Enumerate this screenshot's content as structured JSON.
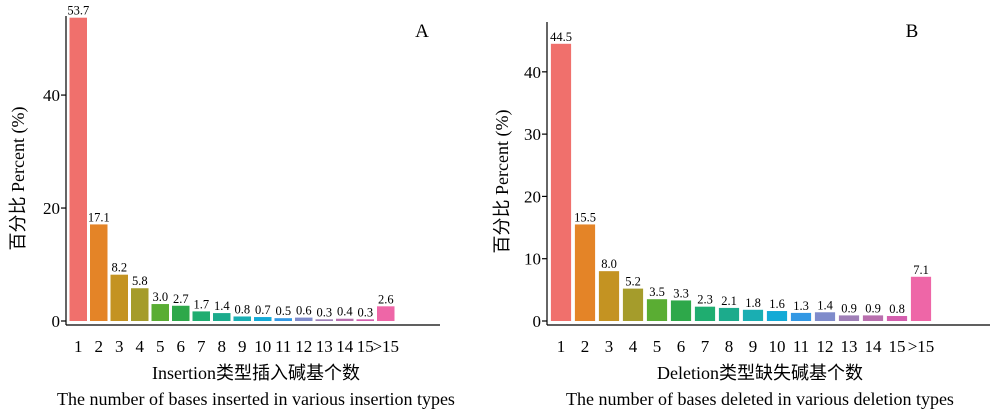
{
  "chart_data": [
    {
      "type": "bar",
      "panel_label": "A",
      "categories": [
        "1",
        "2",
        "3",
        "4",
        "5",
        "6",
        "7",
        "8",
        "9",
        "10",
        "11",
        "12",
        "13",
        "14",
        "15",
        ">15"
      ],
      "values": [
        53.7,
        17.1,
        8.2,
        5.8,
        3.0,
        2.7,
        1.7,
        1.4,
        0.8,
        0.7,
        0.5,
        0.6,
        0.3,
        0.4,
        0.3,
        2.6
      ],
      "value_labels": [
        "53.7",
        "17.1",
        "8.2",
        "5.8",
        "3.0",
        "2.7",
        "1.7",
        "1.4",
        "0.8",
        "0.7",
        "0.5",
        "0.6",
        "0.3",
        "0.4",
        "0.3",
        "2.6"
      ],
      "ylabel": "百分比 Percent (%)",
      "xlabel": "Insertion类型插入碱基个数",
      "xlabel_en": "The number of bases inserted in various insertion types",
      "yticks": [
        0,
        20,
        40
      ],
      "ylim": [
        0,
        54
      ],
      "grid": false,
      "colors": [
        "#f0706c",
        "#e48427",
        "#c49322",
        "#a59c2b",
        "#5aad33",
        "#2ea84a",
        "#1fad70",
        "#1cab8c",
        "#1aaeb2",
        "#13aad6",
        "#3298e4",
        "#7f8bcb",
        "#9f7fb7",
        "#b96fae",
        "#d45fae",
        "#ee66a7"
      ]
    },
    {
      "type": "bar",
      "panel_label": "B",
      "categories": [
        "1",
        "2",
        "3",
        "4",
        "5",
        "6",
        "7",
        "8",
        "9",
        "10",
        "11",
        "12",
        "13",
        "14",
        "15",
        ">15"
      ],
      "values": [
        44.5,
        15.5,
        8.0,
        5.2,
        3.5,
        3.3,
        2.3,
        2.1,
        1.8,
        1.6,
        1.3,
        1.4,
        0.9,
        0.9,
        0.8,
        7.1
      ],
      "value_labels": [
        "44.5",
        "15.5",
        "8.0",
        "5.2",
        "3.5",
        "3.3",
        "2.3",
        "2.1",
        "1.8",
        "1.6",
        "1.3",
        "1.4",
        "0.9",
        "0.9",
        "0.8",
        "7.1"
      ],
      "ylabel": "百分比 Percent (%)",
      "xlabel": "Deletion类型缺失碱基个数",
      "xlabel_en": "The number of bases deleted in various deletion types",
      "yticks": [
        0,
        10,
        20,
        30,
        40
      ],
      "ylim": [
        0,
        48
      ],
      "grid": false,
      "colors": [
        "#f0706c",
        "#e48427",
        "#c49322",
        "#a59c2b",
        "#5aad33",
        "#2ea84a",
        "#1fad70",
        "#1cab8c",
        "#1aaeb2",
        "#13aad6",
        "#3298e4",
        "#7f8bcb",
        "#9f7fb7",
        "#b96fae",
        "#d45fae",
        "#ee66a7"
      ]
    }
  ]
}
